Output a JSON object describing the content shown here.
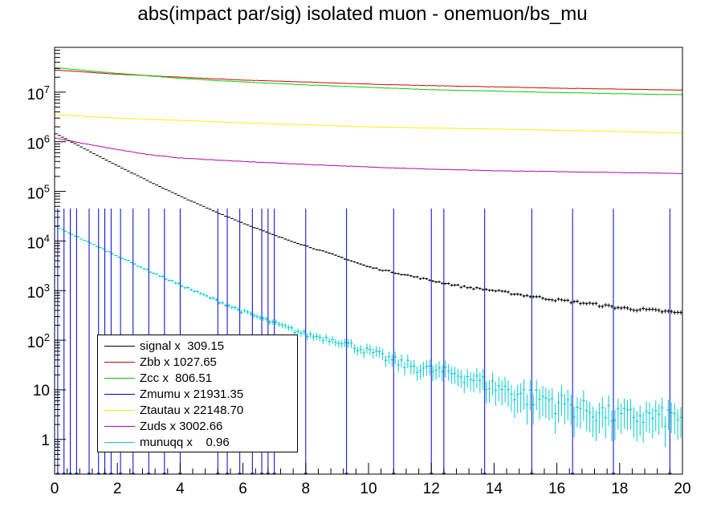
{
  "chart_data": {
    "type": "line",
    "title": "abs(impact par/sig) isolated muon - onemuon/bs_mu",
    "xlabel": "",
    "ylabel": "",
    "xlim": [
      0,
      20
    ],
    "ylim": [
      0.2,
      80000000
    ],
    "yscale": "log",
    "x_tick_labels": [
      "0",
      "2",
      "4",
      "6",
      "8",
      "10",
      "12",
      "14",
      "16",
      "18",
      "20"
    ],
    "y_tick_labels": [
      "1",
      "10",
      "10^2",
      "10^3",
      "10^4",
      "10^5",
      "10^6",
      "10^7"
    ],
    "grid": false,
    "legend_position": "bottom-left",
    "series": [
      {
        "name": "signal x  309.15",
        "color": "#000000",
        "x": [
          0,
          1,
          2,
          3,
          4,
          5,
          6,
          7,
          8,
          9,
          10,
          11,
          12,
          13,
          14,
          15,
          16,
          17,
          18,
          19,
          20
        ],
        "y": [
          1500000,
          700000,
          330000,
          160000,
          80000,
          42000,
          23000,
          13000,
          8000,
          5000,
          3000,
          2200,
          1600,
          1200,
          1000,
          800,
          650,
          550,
          450,
          400,
          350
        ]
      },
      {
        "name": "Zbb x 1027.65",
        "color": "#cc0000",
        "x": [
          0,
          2,
          4,
          6,
          8,
          10,
          12,
          14,
          16,
          18,
          20
        ],
        "y": [
          28000000,
          23000000,
          20000000,
          17500000,
          16000000,
          14500000,
          13500000,
          12800000,
          12000000,
          11500000,
          11000000
        ]
      },
      {
        "name": "Zcc x  806.51",
        "color": "#00cc00",
        "x": [
          0,
          2,
          4,
          6,
          8,
          10,
          12,
          14,
          16,
          18,
          20
        ],
        "y": [
          31000000,
          24000000,
          19000000,
          16000000,
          14000000,
          12500000,
          11200000,
          10500000,
          9800000,
          9300000,
          8900000
        ]
      },
      {
        "name": "Zmumu x 21931.35",
        "color": "#0000cc",
        "x": [
          0.1,
          0.3,
          0.5,
          0.7,
          1.1,
          1.4,
          1.6,
          1.8,
          2.1,
          2.5,
          3.0,
          3.5,
          4.0,
          5.2,
          5.5,
          5.9,
          6.3,
          6.6,
          6.8,
          7.0,
          8.0,
          9.3,
          10.8,
          12.0,
          12.4,
          13.7,
          15.2,
          16.5,
          17.8,
          19.6
        ],
        "y": [
          0.2,
          0.2,
          0.2,
          0.2,
          0.2,
          0.2,
          0.2,
          0.2,
          0.2,
          0.2,
          0.2,
          0.2,
          0.2,
          0.2,
          0.2,
          0.2,
          0.2,
          0.2,
          0.2,
          0.2,
          0.2,
          0.2,
          0.2,
          0.2,
          0.2,
          0.2,
          0.2,
          0.2,
          0.2,
          0.2
        ]
      },
      {
        "name": "Ztautau x 22148.70",
        "color": "#ffee00",
        "x": [
          0,
          2,
          4,
          6,
          8,
          10,
          12,
          14,
          16,
          18,
          20
        ],
        "y": [
          3500000,
          3000000,
          2700000,
          2400000,
          2200000,
          2000000,
          1900000,
          1800000,
          1700000,
          1600000,
          1500000
        ]
      },
      {
        "name": "Zuds x 3002.66",
        "color": "#b000b0",
        "x": [
          0,
          1,
          2,
          3,
          4,
          6,
          8,
          10,
          12,
          14,
          16,
          18,
          20
        ],
        "y": [
          1200000,
          900000,
          700000,
          550000,
          470000,
          400000,
          350000,
          310000,
          280000,
          260000,
          250000,
          240000,
          230000
        ]
      },
      {
        "name": "munuqq x    0.96",
        "color": "#00cccc",
        "x": [
          0,
          1,
          2,
          3,
          4,
          5,
          6,
          7,
          8,
          9,
          10,
          11,
          12,
          13,
          14,
          15,
          16,
          17,
          18,
          19,
          20
        ],
        "y": [
          20000,
          10000,
          5000,
          2500,
          1300,
          700,
          380,
          220,
          130,
          100,
          60,
          35,
          25,
          20,
          12,
          8,
          6,
          4,
          3,
          3,
          3
        ]
      }
    ]
  },
  "colors": {
    "frame": "#000000",
    "background": "#ffffff"
  }
}
